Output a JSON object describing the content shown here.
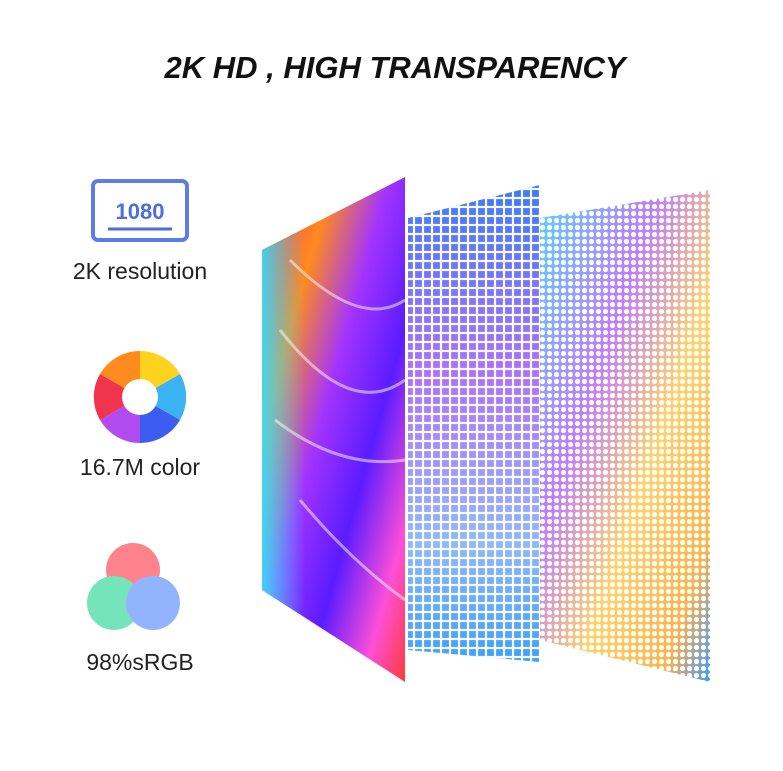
{
  "header": {
    "title": "2K HD , HIGH TRANSPARENCY"
  },
  "features": [
    {
      "icon_text": "1080",
      "label": "2K resolution"
    },
    {
      "label": "16.7M color"
    },
    {
      "label": "98%sRGB"
    }
  ]
}
